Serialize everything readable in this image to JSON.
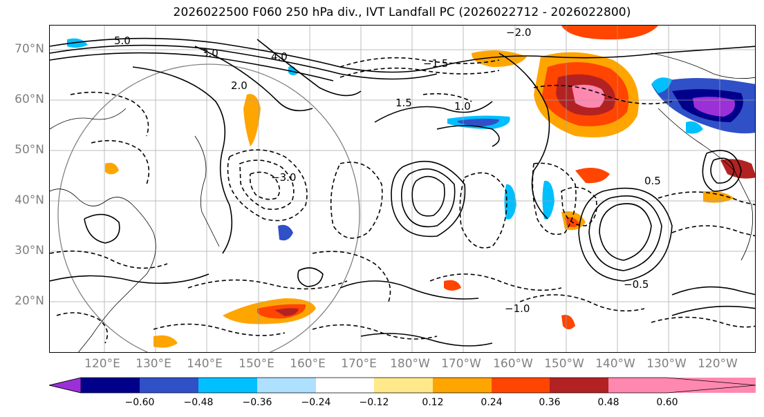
{
  "title": "2026022500 F060 250 hPa div., IVT Landfall PC (2026022712 - 2026022800)",
  "lat_labels": [
    "70°N",
    "60°N",
    "50°N",
    "40°N",
    "30°N",
    "20°N"
  ],
  "lon_labels": [
    "120°E",
    "130°E",
    "140°E",
    "150°E",
    "160°E",
    "170°E",
    "180°W",
    "170°W",
    "160°W",
    "150°W",
    "140°W",
    "130°W",
    "120°W"
  ],
  "colorbar": {
    "colors": [
      "#9b30d9",
      "#00008b",
      "#3050c8",
      "#00bfff",
      "#aee0ff",
      "#ffffff",
      "#ffe88a",
      "#ffa500",
      "#ff4500",
      "#b22222",
      "#ff88b0"
    ],
    "tick_labels": [
      "−0.60",
      "−0.48",
      "−0.36",
      "−0.24",
      "−0.12",
      "0.12",
      "0.24",
      "0.36",
      "0.48",
      "0.60"
    ]
  },
  "contour_labels": [
    "5.0",
    "4.0",
    "3.0",
    "2.0",
    "1.5",
    "1.0",
    "0.5",
    "−0.5",
    "−1.0",
    "−1.5",
    "−2.0",
    "−3.0"
  ]
}
